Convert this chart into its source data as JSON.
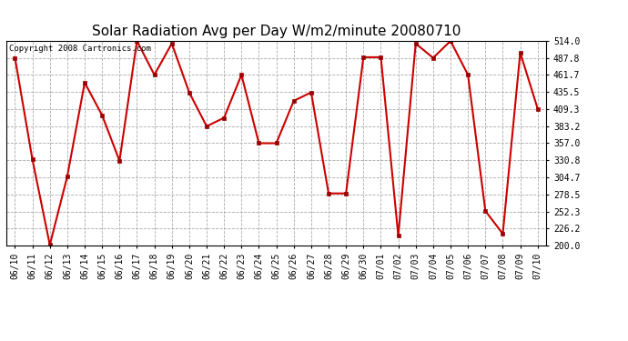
{
  "title": "Solar Radiation Avg per Day W/m2/minute 20080710",
  "copyright": "Copyright 2008 Cartronics.com",
  "dates": [
    "06/10",
    "06/11",
    "06/12",
    "06/13",
    "06/14",
    "06/15",
    "06/16",
    "06/17",
    "06/18",
    "06/19",
    "06/20",
    "06/21",
    "06/22",
    "06/23",
    "06/24",
    "06/25",
    "06/26",
    "06/27",
    "06/28",
    "06/29",
    "06/30",
    "07/01",
    "07/02",
    "07/03",
    "07/04",
    "07/05",
    "07/06",
    "07/07",
    "07/08",
    "07/09",
    "07/10"
  ],
  "values": [
    488,
    332,
    201,
    306,
    450,
    400,
    330,
    514,
    462,
    510,
    435,
    383,
    396,
    462,
    357,
    357,
    422,
    435,
    280,
    280,
    489,
    489,
    215,
    510,
    488,
    514,
    462,
    253,
    218,
    496,
    410
  ],
  "ylim": [
    200,
    514
  ],
  "yticks": [
    200.0,
    226.2,
    252.3,
    278.5,
    304.7,
    330.8,
    357.0,
    383.2,
    409.3,
    435.5,
    461.7,
    487.8,
    514.0
  ],
  "line_color": "#cc0000",
  "marker_color": "#990000",
  "bg_color": "#ffffff",
  "grid_color": "#aaaaaa",
  "title_fontsize": 11,
  "copyright_fontsize": 6.5,
  "tick_fontsize": 7,
  "ytick_fontsize": 7
}
